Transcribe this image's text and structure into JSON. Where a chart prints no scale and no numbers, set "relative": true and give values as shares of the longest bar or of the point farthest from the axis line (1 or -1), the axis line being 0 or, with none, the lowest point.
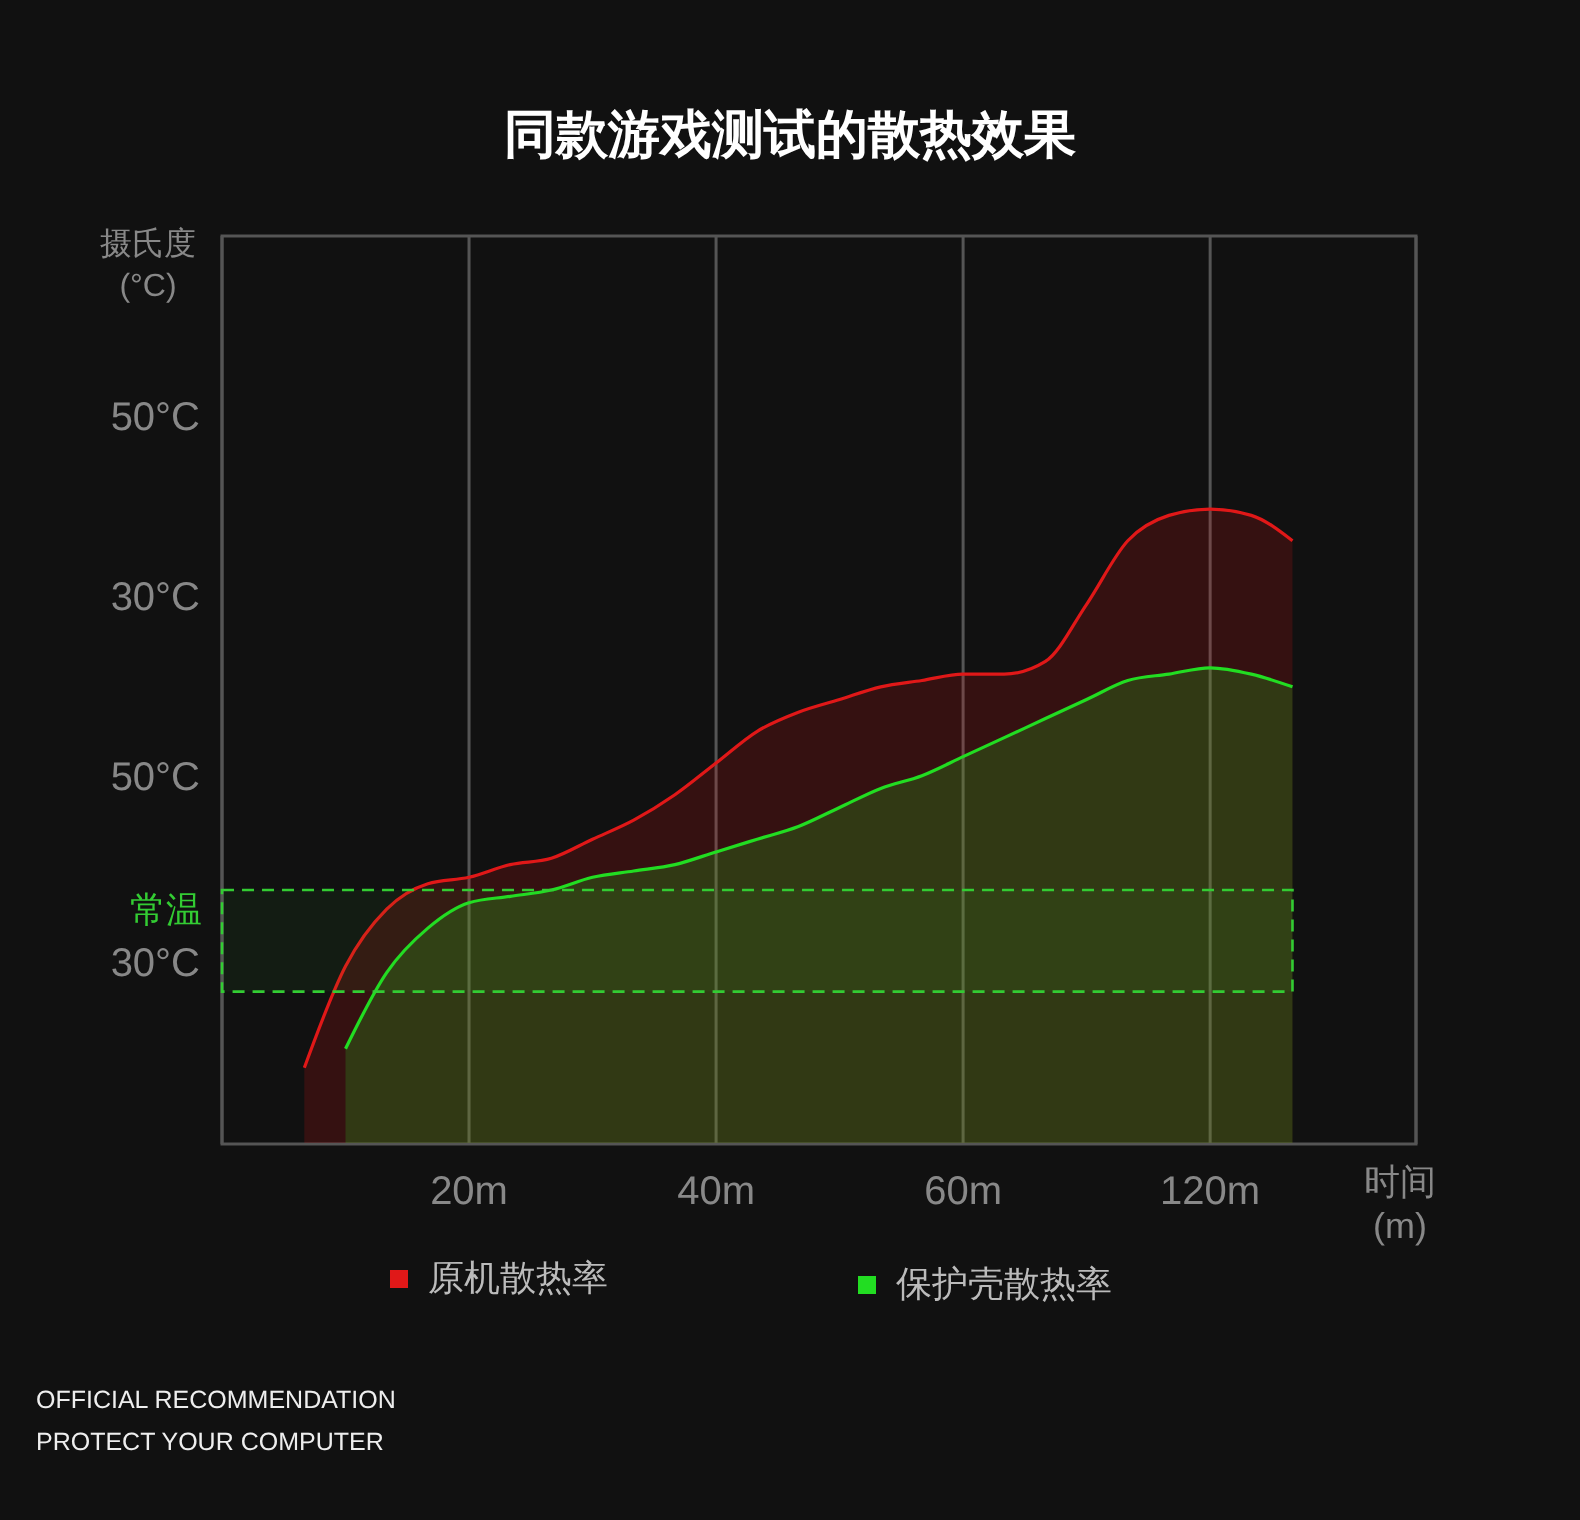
{
  "chart_data": {
    "type": "area",
    "title": "同款游戏测试的散热效果",
    "xlabel": "时间\n(m)",
    "relative": true,
    "categories": [
      null,
      null,
      null,
      null,
      null,
      null,
      "20m",
      null,
      null,
      null,
      null,
      null,
      "40m",
      null,
      null,
      null,
      null,
      null,
      "60m",
      null,
      null,
      null,
      null,
      null,
      "120m",
      null,
      null,
      null,
      null,
      null
    ],
    "grid": "x",
    "legend": "bottom",
    "series": [
      {
        "name": "原机散热率",
        "color": "#e01818",
        "values": [
          null,
          null,
          0.12,
          0.28,
          0.37,
          0.41,
          0.42,
          0.44,
          0.45,
          0.48,
          0.51,
          0.55,
          0.6,
          0.65,
          0.68,
          0.7,
          0.72,
          0.73,
          0.74,
          0.74,
          0.76,
          0.85,
          0.95,
          0.99,
          1,
          0.99,
          0.95,
          null,
          null,
          null
        ]
      },
      {
        "name": "保护壳散热率",
        "color": "#22dd22",
        "values": [
          null,
          null,
          null,
          0.15,
          0.27,
          0.34,
          0.38,
          0.39,
          0.4,
          0.42,
          0.43,
          0.44,
          0.46,
          0.48,
          0.5,
          0.53,
          0.56,
          0.58,
          0.61,
          0.64,
          0.67,
          0.7,
          0.73,
          0.74,
          0.75,
          0.74,
          0.72,
          null,
          null,
          null
        ]
      }
    ],
    "bands": [
      {
        "axis": "y",
        "from": 0.24,
        "to": 0.4,
        "label": "常温",
        "color": "#33cc33"
      }
    ],
    "annotations": [
      "摄氏度\n(°C)",
      "50°C",
      "30°C",
      "50°C",
      "30°C",
      "OFFICIAL RECOMMENDATION",
      "PROTECT YOUR COMPUTER"
    ]
  }
}
